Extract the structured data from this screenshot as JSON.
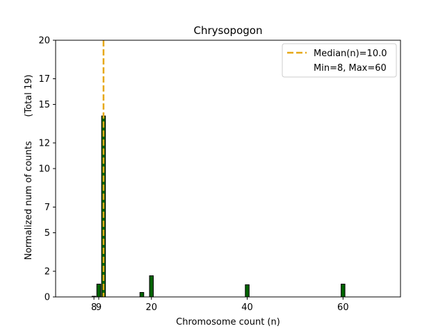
{
  "chart_data": {
    "type": "bar",
    "title": "Chrysopogon",
    "xlabel": "Chromosome count (n)",
    "ylabel": "Normalized num of counts",
    "ylabel_total": "(Total 19)",
    "xlim": [
      0,
      72
    ],
    "ylim": [
      0,
      20
    ],
    "xticks": [
      {
        "value": 8,
        "label": "8"
      },
      {
        "value": 9,
        "label": "9"
      },
      {
        "value": 20,
        "label": "20"
      },
      {
        "value": 40,
        "label": "40"
      },
      {
        "value": 60,
        "label": "60"
      }
    ],
    "yticks": [
      {
        "value": 0,
        "label": "0"
      },
      {
        "value": 2,
        "label": "2"
      },
      {
        "value": 5,
        "label": "5"
      },
      {
        "value": 7,
        "label": "7"
      },
      {
        "value": 10,
        "label": "10"
      },
      {
        "value": 12,
        "label": "12"
      },
      {
        "value": 15,
        "label": "15"
      },
      {
        "value": 17,
        "label": "17"
      },
      {
        "value": 20,
        "label": "20"
      }
    ],
    "bars": [
      {
        "x": 8,
        "value": 0.05
      },
      {
        "x": 9,
        "value": 1.0
      },
      {
        "x": 10,
        "value": 14.1
      },
      {
        "x": 18,
        "value": 0.35
      },
      {
        "x": 20,
        "value": 1.65
      },
      {
        "x": 40,
        "value": 0.95
      },
      {
        "x": 60,
        "value": 1.0
      }
    ],
    "bar_color": "#006400",
    "median": 10.0,
    "median_color": "#E6A817",
    "legend": {
      "median_label": "Median(n)=10.0",
      "range_label": "Min=8, Max=60",
      "position": "top-right"
    }
  }
}
